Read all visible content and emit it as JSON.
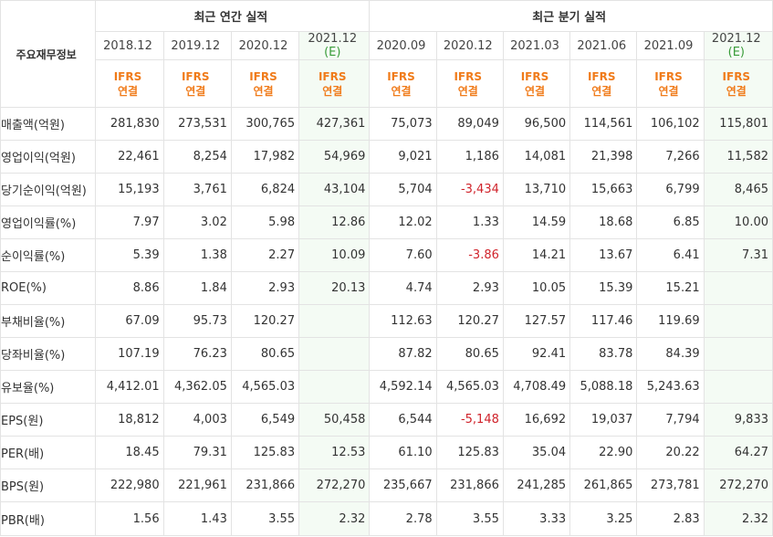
{
  "header": {
    "row_label": "주요재무정보",
    "annual_group": "최근 연간 실적",
    "quarterly_group": "최근 분기 실적",
    "estimate_mark": "(E)",
    "ifrs_line1": "IFRS",
    "ifrs_line2": "연결"
  },
  "annual_periods": [
    {
      "label": "2018.12",
      "estimate": false
    },
    {
      "label": "2019.12",
      "estimate": false
    },
    {
      "label": "2020.12",
      "estimate": false
    },
    {
      "label": "2021.12",
      "estimate": true
    }
  ],
  "quarterly_periods": [
    {
      "label": "2020.09",
      "estimate": false
    },
    {
      "label": "2020.12",
      "estimate": false
    },
    {
      "label": "2021.03",
      "estimate": false
    },
    {
      "label": "2021.06",
      "estimate": false
    },
    {
      "label": "2021.09",
      "estimate": false
    },
    {
      "label": "2021.12",
      "estimate": true
    }
  ],
  "rows": [
    {
      "label": "매출액(억원)",
      "values": [
        "281,830",
        "273,531",
        "300,765",
        "427,361",
        "75,073",
        "89,049",
        "96,500",
        "114,561",
        "106,102",
        "115,801"
      ],
      "group_start": true
    },
    {
      "label": "영업이익(억원)",
      "values": [
        "22,461",
        "8,254",
        "17,982",
        "54,969",
        "9,021",
        "1,186",
        "14,081",
        "21,398",
        "7,266",
        "11,582"
      ]
    },
    {
      "label": "당기순이익(억원)",
      "values": [
        "15,193",
        "3,761",
        "6,824",
        "43,104",
        "5,704",
        "-3,434",
        "13,710",
        "15,663",
        "6,799",
        "8,465"
      ]
    },
    {
      "label": "영업이익률(%)",
      "values": [
        "7.97",
        "3.02",
        "5.98",
        "12.86",
        "12.02",
        "1.33",
        "14.59",
        "18.68",
        "6.85",
        "10.00"
      ],
      "group_start": true
    },
    {
      "label": "순이익률(%)",
      "values": [
        "5.39",
        "1.38",
        "2.27",
        "10.09",
        "7.60",
        "-3.86",
        "14.21",
        "13.67",
        "6.41",
        "7.31"
      ]
    },
    {
      "label": "ROE(%)",
      "values": [
        "8.86",
        "1.84",
        "2.93",
        "20.13",
        "4.74",
        "2.93",
        "10.05",
        "15.39",
        "15.21",
        ""
      ]
    },
    {
      "label": "부채비율(%)",
      "values": [
        "67.09",
        "95.73",
        "120.27",
        "",
        "112.63",
        "120.27",
        "127.57",
        "117.46",
        "119.69",
        ""
      ],
      "group_start": true
    },
    {
      "label": "당좌비율(%)",
      "values": [
        "107.19",
        "76.23",
        "80.65",
        "",
        "87.82",
        "80.65",
        "92.41",
        "83.78",
        "84.39",
        ""
      ]
    },
    {
      "label": "유보율(%)",
      "values": [
        "4,412.01",
        "4,362.05",
        "4,565.03",
        "",
        "4,592.14",
        "4,565.03",
        "4,708.49",
        "5,088.18",
        "5,243.63",
        ""
      ]
    },
    {
      "label": "EPS(원)",
      "values": [
        "18,812",
        "4,003",
        "6,549",
        "50,458",
        "6,544",
        "-5,148",
        "16,692",
        "19,037",
        "7,794",
        "9,833"
      ],
      "group_start": true
    },
    {
      "label": "PER(배)",
      "values": [
        "18.45",
        "79.31",
        "125.83",
        "12.53",
        "61.10",
        "125.83",
        "35.04",
        "22.90",
        "20.22",
        "64.27"
      ]
    },
    {
      "label": "BPS(원)",
      "values": [
        "222,980",
        "221,961",
        "231,866",
        "272,270",
        "235,667",
        "231,866",
        "241,285",
        "261,865",
        "273,781",
        "272,270"
      ]
    },
    {
      "label": "PBR(배)",
      "values": [
        "1.56",
        "1.43",
        "3.55",
        "2.32",
        "2.78",
        "3.55",
        "3.33",
        "3.25",
        "2.83",
        "2.32"
      ]
    }
  ]
}
